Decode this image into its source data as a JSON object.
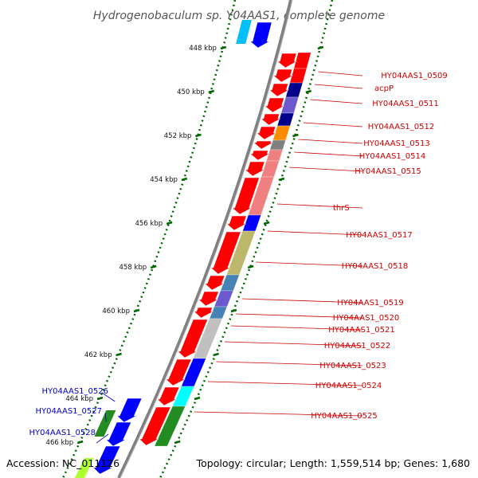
{
  "title": "Hydrogenobaculum sp. Y04AAS1, complete genome",
  "accession": "Accession: NC_011126",
  "topology": "Topology: circular; Length: 1,559,514 bp; Genes: 1,680",
  "colors": {
    "plus_strand": "#ff0000",
    "minus_strand": "#0000ff",
    "tick": "#006600",
    "backbone": "#808080",
    "label_plus": "#cc0000",
    "label_minus": "#0000cc"
  },
  "ticks": [
    "448 kbp",
    "450 kbp",
    "452 kbp",
    "454 kbp",
    "456 kbp",
    "458 kbp",
    "460 kbp",
    "462 kbp",
    "464 kbp",
    "466 kbp"
  ],
  "labels_right": [
    "HY04AAS1_0509",
    "acpP",
    "HY04AAS1_0511",
    "HY04AAS1_0512",
    "HY04AAS1_0513",
    "HY04AAS1_0514",
    "HY04AAS1_0515",
    "thrS",
    "HY04AAS1_0517",
    "HY04AAS1_0518",
    "HY04AAS1_0519",
    "HY04AAS1_0520",
    "HY04AAS1_0521",
    "HY04AAS1_0522",
    "HY04AAS1_0523",
    "HY04AAS1_0524",
    "HY04AAS1_0525"
  ],
  "labels_left": [
    "HY04AAS1_0526",
    "HY04AAS1_0527",
    "HY04AAS1_0528"
  ],
  "cog_colors": [
    "#ff0000",
    "#ff0000",
    "#00008b",
    "#6a5acd",
    "#00008b",
    "#ff8c00",
    "#808080",
    "#f08080",
    "#f08080",
    "#f08080",
    "#0000ff",
    "#bdb76b",
    "#4682b4",
    "#6a5acd",
    "#4682b4",
    "#c0c0c0",
    "#0000ff",
    "#00ffff",
    "#228b22",
    "#adff2f"
  ]
}
